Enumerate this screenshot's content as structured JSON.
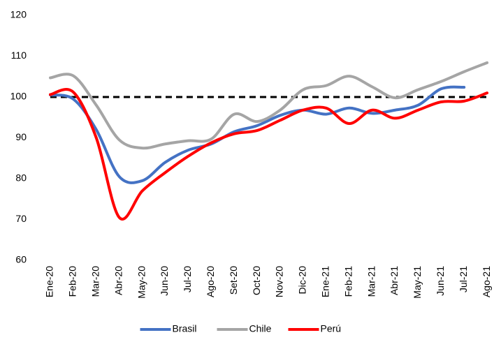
{
  "chart_data": {
    "type": "line",
    "categories": [
      "Ene-20",
      "Feb-20",
      "Mar-20",
      "Abr-20",
      "May-20",
      "Jun-20",
      "Jul-20",
      "Ago-20",
      "Set-20",
      "Oct-20",
      "Nov-20",
      "Dic-20",
      "Ene-21",
      "Feb-21",
      "Mar-21",
      "Abr-21",
      "May-21",
      "Jun-21",
      "Jul-21",
      "Ago-21"
    ],
    "series": [
      {
        "name": "Brasil",
        "color": "#4472c4",
        "values": [
          100.5,
          99.5,
          92,
          80.5,
          79.5,
          84,
          87,
          88.5,
          91.5,
          93,
          95.5,
          96.8,
          95.8,
          97.3,
          96,
          96.8,
          98,
          102,
          102.4,
          null
        ]
      },
      {
        "name": "Chile",
        "color": "#a5a5a5",
        "values": [
          104.7,
          105.2,
          98,
          89.5,
          87.5,
          88.5,
          89.3,
          89.7,
          95.8,
          94,
          96.8,
          101.8,
          102.8,
          105.1,
          102.5,
          99.8,
          101.8,
          103.8,
          106.2,
          108.4
        ]
      },
      {
        "name": "Perú",
        "color": "#ff0000",
        "values": [
          100.6,
          101.2,
          90,
          70.5,
          77,
          81.5,
          85.5,
          88.8,
          91,
          91.8,
          94.3,
          96.8,
          97.3,
          93.5,
          96.8,
          94.8,
          96.8,
          98.8,
          99,
          101
        ]
      }
    ],
    "reference_line": 100,
    "ylim": [
      60,
      120
    ],
    "yticks": [
      60,
      70,
      80,
      90,
      100,
      110,
      120
    ],
    "grid": false,
    "legend": "bottom"
  }
}
